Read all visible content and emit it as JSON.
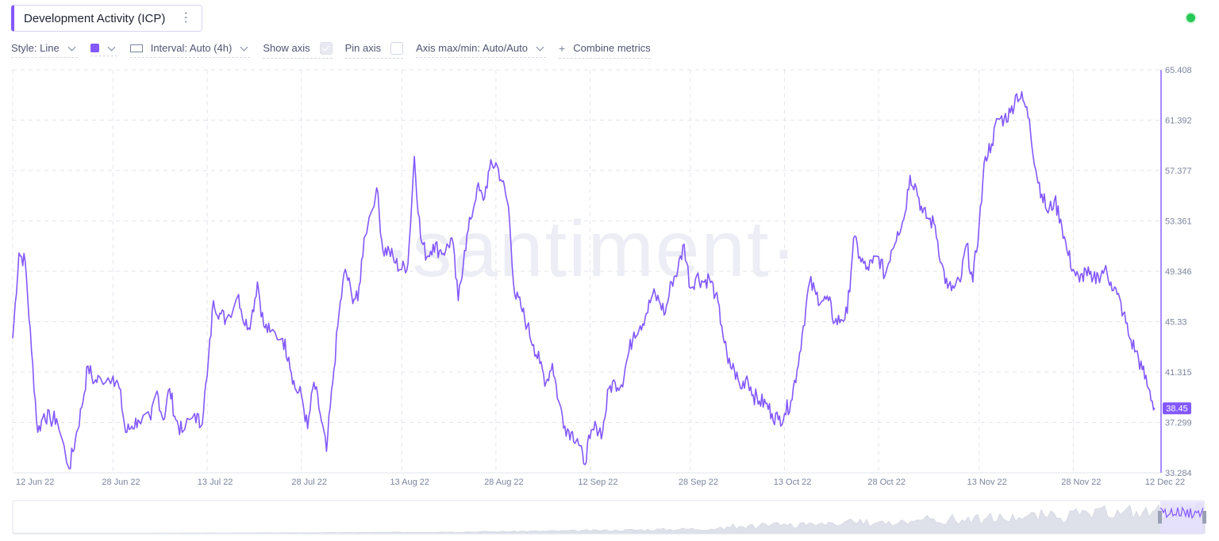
{
  "header": {
    "title": "Development Activity (ICP)",
    "menu_icon": "kebab-icon",
    "status_icon": "status-dot-icon"
  },
  "toolbar": {
    "style_label": "Style: Line",
    "color_label": "",
    "interval_label": "Interval: Auto (4h)",
    "show_axis_label": "Show axis",
    "show_axis_checked": true,
    "pin_axis_label": "Pin axis",
    "pin_axis_checked": false,
    "axis_minmax_label": "Axis max/min: Auto/Auto",
    "combine_label": "Combine metrics"
  },
  "watermark": "·santiment·",
  "colors": {
    "line": "#8358ff",
    "grid": "#e3e5ee",
    "axis_text": "#7a859e",
    "status": "#26c953"
  },
  "chart_data": {
    "type": "line",
    "title": "Development Activity (ICP)",
    "x_ticks": [
      "12 Jun 22",
      "28 Jun 22",
      "13 Jul 22",
      "28 Jul 22",
      "13 Aug 22",
      "28 Aug 22",
      "12 Sep 22",
      "28 Sep 22",
      "13 Oct 22",
      "28 Oct 22",
      "13 Nov 22",
      "28 Nov 22",
      "12 Dec 22"
    ],
    "y_ticks": [
      "65.408",
      "61.392",
      "57.377",
      "53.361",
      "49.346",
      "45.33",
      "41.315",
      "37.299",
      "33.284"
    ],
    "ylim": [
      33.284,
      65.408
    ],
    "last_value_label": "38.45",
    "grid": true,
    "series": [
      {
        "name": "",
        "x": [
          "2022-06-12",
          "2022-06-13",
          "2022-06-14",
          "2022-06-15",
          "2022-06-16",
          "2022-06-17",
          "2022-06-18",
          "2022-06-19",
          "2022-06-21",
          "2022-06-22",
          "2022-06-23",
          "2022-06-24",
          "2022-06-25",
          "2022-06-26",
          "2022-06-28",
          "2022-06-29",
          "2022-06-30",
          "2022-07-01",
          "2022-07-02",
          "2022-07-04",
          "2022-07-05",
          "2022-07-06",
          "2022-07-07",
          "2022-07-08",
          "2022-07-09",
          "2022-07-11",
          "2022-07-12",
          "2022-07-13",
          "2022-07-14",
          "2022-07-15",
          "2022-07-16",
          "2022-07-18",
          "2022-07-19",
          "2022-07-20",
          "2022-07-21",
          "2022-07-22",
          "2022-07-23",
          "2022-07-25",
          "2022-07-26",
          "2022-07-27",
          "2022-07-28",
          "2022-07-29",
          "2022-07-30",
          "2022-07-31",
          "2022-08-01",
          "2022-08-02",
          "2022-08-03",
          "2022-08-04",
          "2022-08-05",
          "2022-08-06",
          "2022-08-07",
          "2022-08-09",
          "2022-08-10",
          "2022-08-11",
          "2022-08-12",
          "2022-08-13",
          "2022-08-14",
          "2022-08-15",
          "2022-08-16",
          "2022-08-17",
          "2022-08-18",
          "2022-08-19",
          "2022-08-20",
          "2022-08-21",
          "2022-08-22",
          "2022-08-23",
          "2022-08-24",
          "2022-08-25",
          "2022-08-26",
          "2022-08-27",
          "2022-08-28",
          "2022-08-29",
          "2022-08-30",
          "2022-08-31",
          "2022-09-01",
          "2022-09-02",
          "2022-09-03",
          "2022-09-04",
          "2022-09-05",
          "2022-09-06",
          "2022-09-07",
          "2022-09-08",
          "2022-09-09",
          "2022-09-10",
          "2022-09-11",
          "2022-09-12",
          "2022-09-13",
          "2022-09-14",
          "2022-09-15",
          "2022-09-16",
          "2022-09-17",
          "2022-09-18",
          "2022-09-19",
          "2022-09-20",
          "2022-09-21",
          "2022-09-22",
          "2022-09-23",
          "2022-09-24",
          "2022-09-25",
          "2022-09-26",
          "2022-09-27",
          "2022-09-28",
          "2022-09-29",
          "2022-09-30",
          "2022-10-01",
          "2022-10-02",
          "2022-10-03",
          "2022-10-04",
          "2022-10-05",
          "2022-10-06",
          "2022-10-07",
          "2022-10-08",
          "2022-10-09",
          "2022-10-10",
          "2022-10-11",
          "2022-10-12",
          "2022-10-13",
          "2022-10-14",
          "2022-10-15",
          "2022-10-16",
          "2022-10-17",
          "2022-10-18",
          "2022-10-19",
          "2022-10-20",
          "2022-10-21",
          "2022-10-22",
          "2022-10-23",
          "2022-10-24",
          "2022-10-25",
          "2022-10-26",
          "2022-10-27",
          "2022-10-28",
          "2022-10-29",
          "2022-10-30",
          "2022-10-31",
          "2022-11-01",
          "2022-11-02",
          "2022-11-03",
          "2022-11-04",
          "2022-11-05",
          "2022-11-06",
          "2022-11-07",
          "2022-11-08",
          "2022-11-09",
          "2022-11-10",
          "2022-11-11",
          "2022-11-12",
          "2022-11-13",
          "2022-11-14",
          "2022-11-15",
          "2022-11-16",
          "2022-11-17",
          "2022-11-18",
          "2022-11-19",
          "2022-11-20",
          "2022-11-21",
          "2022-11-22",
          "2022-11-23",
          "2022-11-24",
          "2022-11-25",
          "2022-11-26",
          "2022-11-27",
          "2022-11-28",
          "2022-11-29",
          "2022-11-30",
          "2022-12-01",
          "2022-12-02",
          "2022-12-03",
          "2022-12-04",
          "2022-12-05",
          "2022-12-06",
          "2022-12-07",
          "2022-12-08",
          "2022-12-09",
          "2022-12-10",
          "2022-12-11"
        ],
        "values": [
          44.0,
          50.8,
          50.1,
          43.0,
          36.5,
          38.0,
          37.5,
          37.6,
          33.6,
          36.0,
          38.5,
          41.8,
          40.5,
          40.8,
          41.0,
          40.0,
          36.5,
          37.0,
          37.5,
          37.5,
          39.8,
          37.5,
          40.0,
          37.5,
          36.5,
          38.0,
          37.0,
          41.0,
          47.0,
          46.0,
          45.5,
          47.5,
          45.0,
          45.5,
          48.5,
          45.0,
          44.5,
          44.0,
          42.5,
          40.0,
          39.5,
          36.8,
          40.5,
          38.0,
          35.0,
          40.5,
          46.0,
          49.5,
          47.5,
          47.0,
          52.0,
          56.0,
          51.0,
          51.0,
          50.0,
          49.5,
          50.0,
          58.5,
          52.0,
          50.5,
          51.5,
          51.0,
          51.0,
          52.0,
          47.0,
          51.0,
          53.5,
          56.0,
          55.0,
          57.5,
          58.0,
          56.5,
          54.5,
          47.5,
          46.5,
          45.0,
          43.5,
          42.0,
          40.5,
          42.0,
          39.0,
          37.0,
          36.5,
          36.0,
          34.0,
          36.0,
          37.0,
          36.5,
          40.0,
          40.5,
          40.3,
          42.5,
          44.5,
          45.0,
          46.0,
          47.5,
          47.0,
          46.0,
          48.5,
          49.5,
          51.5,
          48.0,
          49.0,
          48.5,
          48.8,
          47.5,
          45.0,
          42.0,
          41.5,
          40.0,
          41.0,
          39.5,
          39.0,
          38.8,
          38.0,
          37.5,
          38.0,
          39.0,
          41.5,
          45.0,
          48.5,
          47.5,
          47.0,
          47.0,
          45.3,
          45.5,
          46.0,
          52.0,
          50.5,
          49.5,
          50.0,
          50.5,
          49.0,
          51.0,
          52.5,
          53.5,
          57.0,
          56.0,
          54.0,
          53.5,
          53.0,
          50.0,
          48.0,
          48.0,
          48.5,
          51.5,
          48.5,
          53.0,
          58.5,
          59.5,
          61.5,
          61.5,
          62.0,
          63.5,
          63.0,
          61.5,
          57.5,
          55.5,
          54.0,
          55.0,
          53.5,
          51.0,
          49.5,
          48.5,
          49.5,
          48.5,
          49.0,
          49.5,
          48.5,
          47.5,
          46.0,
          44.0,
          43.0,
          41.5,
          40.0,
          38.45
        ]
      }
    ],
    "navigator": {
      "type": "area",
      "note": ""
    }
  }
}
